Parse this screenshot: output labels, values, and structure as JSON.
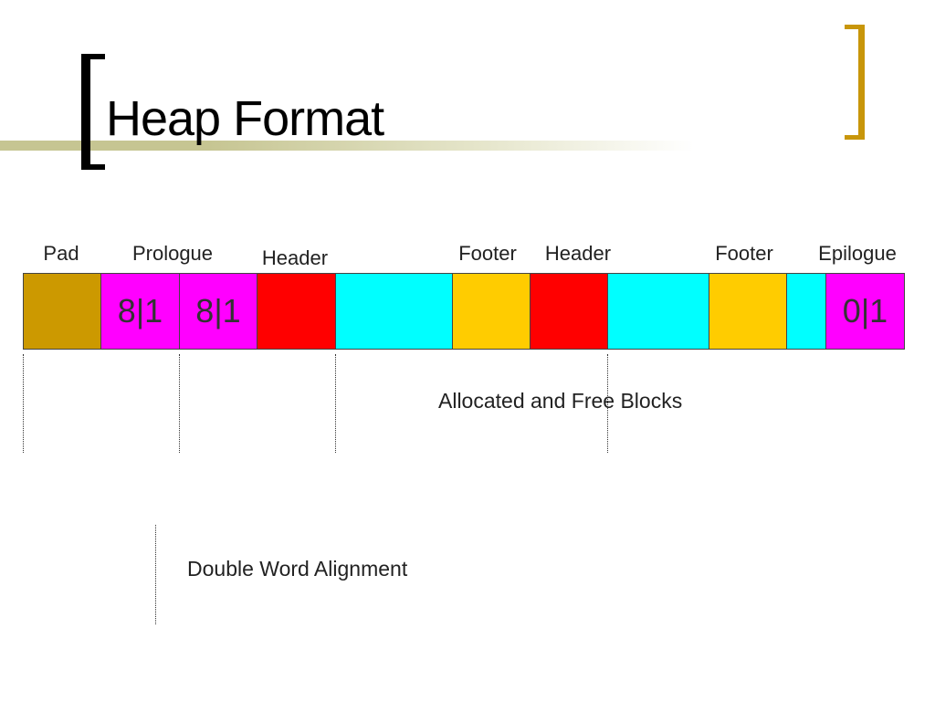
{
  "title": "Heap Format",
  "labels": {
    "pad": "Pad",
    "prologue": "Prologue",
    "header1": "Header",
    "footer1": "Footer",
    "header2": "Header",
    "footer2": "Footer",
    "epilogue": "Epilogue"
  },
  "blocks": [
    {
      "kind": "pad",
      "color": "#cc9900",
      "text": ""
    },
    {
      "kind": "prologue-header",
      "color": "#ff00ff",
      "text": "8|1"
    },
    {
      "kind": "prologue-footer",
      "color": "#ff00ff",
      "text": "8|1"
    },
    {
      "kind": "header",
      "color": "#ff0000",
      "text": ""
    },
    {
      "kind": "payload",
      "color": "#00ffff",
      "text": ""
    },
    {
      "kind": "footer",
      "color": "#ffcc00",
      "text": ""
    },
    {
      "kind": "header",
      "color": "#ff0000",
      "text": ""
    },
    {
      "kind": "payload",
      "color": "#00ffff",
      "text": ""
    },
    {
      "kind": "footer",
      "color": "#ffcc00",
      "text": ""
    },
    {
      "kind": "payload",
      "color": "#00ffff",
      "text": ""
    },
    {
      "kind": "epilogue",
      "color": "#ff00ff",
      "text": "0|1"
    }
  ],
  "notes": {
    "allocated": "Allocated and Free Blocks",
    "alignment": "Double Word Alignment"
  },
  "colors": {
    "left_bracket": "#000000",
    "right_bracket": "#c8960a",
    "title_bar": "#c6c592"
  }
}
